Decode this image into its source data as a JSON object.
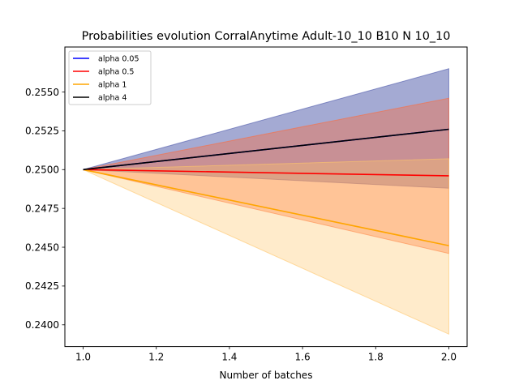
{
  "chart_data": {
    "type": "line",
    "title": "Probabilities evolution CorralAnytime Adult-10_10 B10 N 10_10",
    "xlabel": "Number of batches",
    "ylabel": "",
    "xlim": [
      0.95,
      2.05
    ],
    "ylim": [
      0.2386,
      0.2579
    ],
    "x_ticks": [
      1.0,
      1.2,
      1.4,
      1.6,
      1.8,
      2.0
    ],
    "x_tick_labels": [
      "1.0",
      "1.2",
      "1.4",
      "1.6",
      "1.8",
      "2.0"
    ],
    "y_ticks": [
      0.24,
      0.2425,
      0.245,
      0.2475,
      0.25,
      0.2525,
      0.255
    ],
    "y_tick_labels": [
      "0.2400",
      "0.2425",
      "0.2450",
      "0.2475",
      "0.2500",
      "0.2525",
      "0.2550"
    ],
    "grid": false,
    "legend_position": "top-left",
    "x": [
      1.0,
      2.0
    ],
    "series": [
      {
        "name": "alpha 0.05",
        "color": "#0000ff",
        "values": [
          0.25,
          0.2526
        ],
        "lower": [
          0.25,
          0.2488
        ],
        "upper": [
          0.25,
          0.2565
        ],
        "band_color": "#4a55a8",
        "band_opacity": 0.5
      },
      {
        "name": "alpha 0.5",
        "color": "#ff0000",
        "values": [
          0.25,
          0.2496
        ],
        "lower": [
          0.25,
          0.2446
        ],
        "upper": [
          0.25,
          0.2546
        ],
        "band_color": "#ff6a3a",
        "band_opacity": 0.4
      },
      {
        "name": "alpha 1",
        "color": "#ffa500",
        "values": [
          0.25,
          0.2451
        ],
        "lower": [
          0.25,
          0.2394
        ],
        "upper": [
          0.25,
          0.2507
        ],
        "band_color": "#ffc76a",
        "band_opacity": 0.35
      },
      {
        "name": "alpha 4",
        "color": "#000000",
        "values": [
          0.25,
          0.2526
        ],
        "lower": [
          0.25,
          0.2526
        ],
        "upper": [
          0.25,
          0.2526
        ],
        "band_color": "#000000",
        "band_opacity": 0.0
      }
    ]
  }
}
